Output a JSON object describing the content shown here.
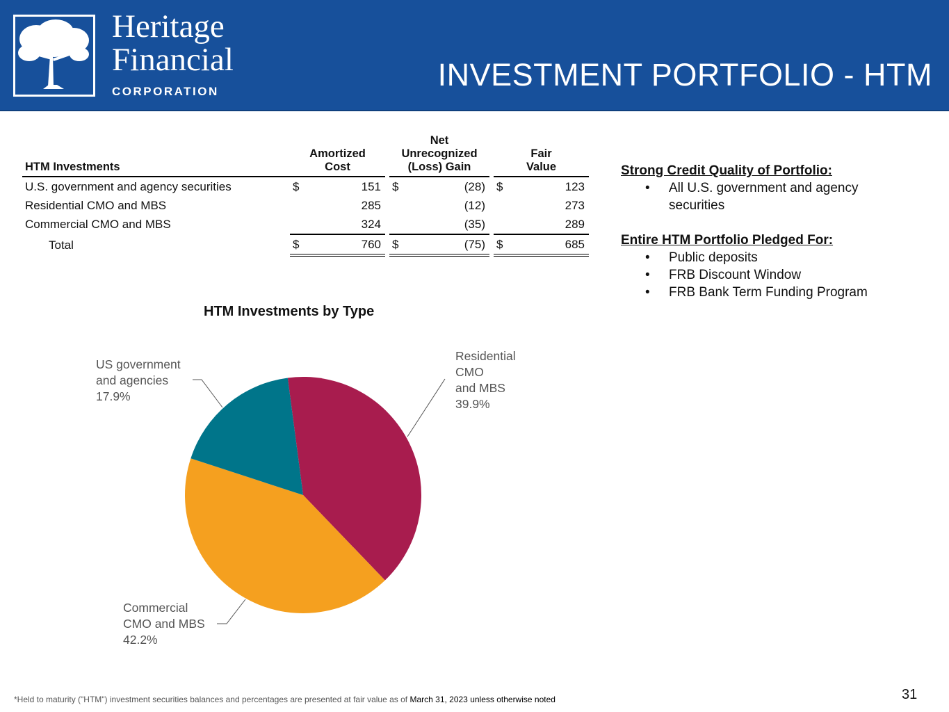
{
  "header": {
    "brand_line1": "Heritage",
    "brand_line2": "Financial",
    "brand_line3": "CORPORATION",
    "title": "INVESTMENT PORTFOLIO - HTM",
    "bg_color": "#17509b"
  },
  "table": {
    "headers": {
      "label": "HTM Investments",
      "cost_l1": "Amortized",
      "cost_l2": "Cost",
      "gain_l1": "Net",
      "gain_l2": "Unrecognized",
      "gain_l3": "(Loss) Gain",
      "fair_l1": "Fair",
      "fair_l2": "Value"
    },
    "currency": "$",
    "rows": [
      {
        "label": "U.S. government and agency securities",
        "cost": "151",
        "gain": "(28)",
        "fair": "123"
      },
      {
        "label": "Residential CMO and MBS",
        "cost": "285",
        "gain": "(12)",
        "fair": "273"
      },
      {
        "label": "Commercial CMO and MBS",
        "cost": "324",
        "gain": "(35)",
        "fair": "289"
      }
    ],
    "total": {
      "label": "Total",
      "cost": "760",
      "gain": "(75)",
      "fair": "685"
    }
  },
  "side": {
    "credit_heading": "Strong Credit Quality of Portfolio:",
    "credit_b1": "All U.S. government and agency",
    "credit_b1b": "securities",
    "pledged_heading": "Entire HTM Portfolio Pledged For:",
    "pledged_items": [
      "Public deposits",
      "FRB Discount Window",
      "FRB Bank Term Funding Program"
    ]
  },
  "chart_data": {
    "type": "pie",
    "title": "HTM Investments by Type",
    "slices": [
      {
        "name": "Residential CMO and MBS",
        "value": 39.9,
        "color": "#a81c4e",
        "label_lines": [
          "Residential",
          "CMO",
          "and MBS",
          "39.9%"
        ]
      },
      {
        "name": "Commercial CMO and MBS",
        "value": 42.2,
        "color": "#f5a01f",
        "label_lines": [
          "Commercial",
          "CMO and MBS",
          "42.2%"
        ]
      },
      {
        "name": "US government and agencies",
        "value": 17.9,
        "color": "#00758a",
        "label_lines": [
          "US government",
          "and agencies",
          "17.9%"
        ]
      }
    ]
  },
  "footer": {
    "note": "*Held to maturity (\"HTM\") investment securities balances and percentages are presented at fair value as of ",
    "date": "March 31, 2023 unless otherwise noted",
    "page_number": "31"
  }
}
